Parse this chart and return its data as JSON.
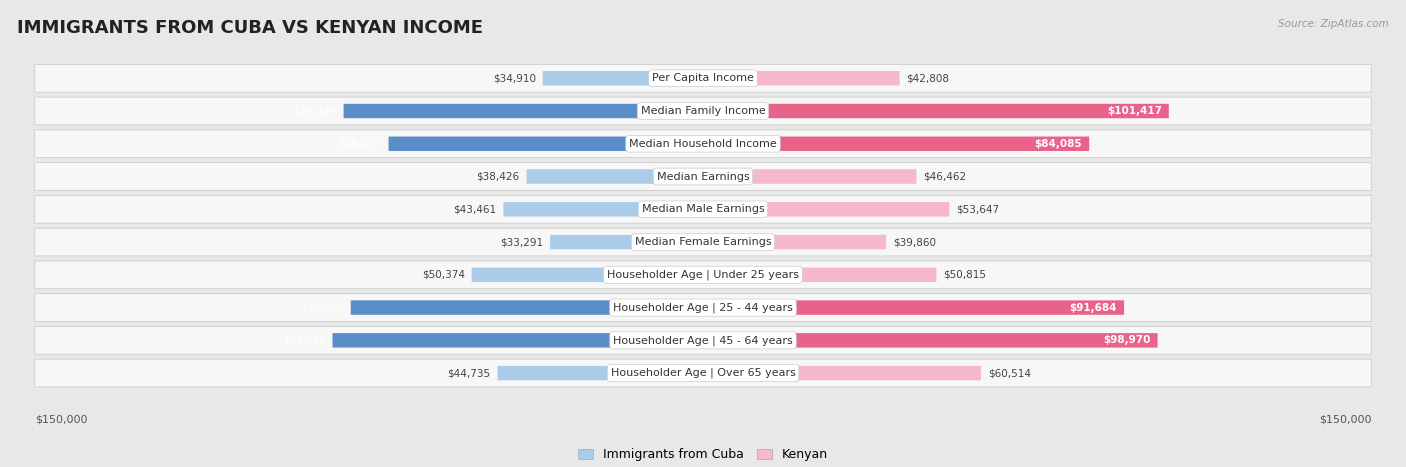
{
  "title": "IMMIGRANTS FROM CUBA VS KENYAN INCOME",
  "source": "Source: ZipAtlas.com",
  "categories": [
    "Per Capita Income",
    "Median Family Income",
    "Median Household Income",
    "Median Earnings",
    "Median Male Earnings",
    "Median Female Earnings",
    "Householder Age | Under 25 years",
    "Householder Age | 25 - 44 years",
    "Householder Age | 45 - 64 years",
    "Householder Age | Over 65 years"
  ],
  "cuba_values": [
    34910,
    78249,
    68461,
    38426,
    43461,
    33291,
    50374,
    76701,
    80662,
    44735
  ],
  "kenyan_values": [
    42808,
    101417,
    84085,
    46462,
    53647,
    39860,
    50815,
    91684,
    98970,
    60514
  ],
  "cuba_color_light": "#aacce8",
  "cuba_color_dark": "#5b8ec9",
  "kenyan_color_light": "#f5b8cc",
  "kenyan_color_dark": "#e8628a",
  "max_val": 150000,
  "xlabel_left": "$150,000",
  "xlabel_right": "$150,000",
  "legend_cuba": "Immigrants from Cuba",
  "legend_kenyan": "Kenyan",
  "background_color": "#e8e8e8",
  "row_bg_color": "#f7f7f7",
  "title_fontsize": 13,
  "label_fontsize": 8,
  "value_fontsize": 7.5,
  "highlight_kenyan": [
    1,
    2,
    7,
    8
  ],
  "highlight_cuba": [
    1,
    2,
    7,
    8
  ]
}
